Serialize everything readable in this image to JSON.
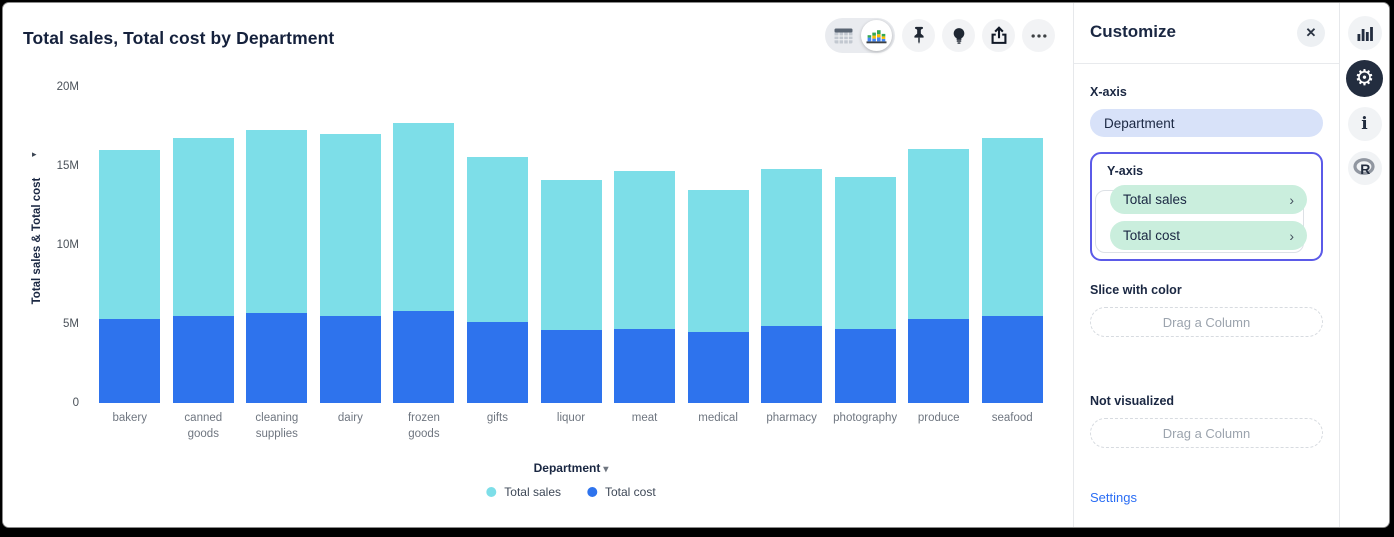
{
  "header": {
    "title": "Total sales, Total cost by Department"
  },
  "toolbar": {
    "view_toggle": {
      "options": [
        "table-view",
        "chart-view"
      ],
      "selected": "chart-view"
    },
    "buttons": [
      "pin",
      "insights-bulb",
      "share",
      "more-options"
    ],
    "more_options_glyph": "•••"
  },
  "customize": {
    "title": "Customize",
    "close_glyph": "✕",
    "x_axis": {
      "label": "X-axis",
      "value": "Department"
    },
    "y_axis": {
      "label": "Y-axis",
      "chevron": "›",
      "values": [
        "Total sales",
        "Total cost"
      ]
    },
    "slice_with_color": {
      "label": "Slice with color",
      "placeholder": "Drag a Column"
    },
    "not_visualized": {
      "label": "Not visualized",
      "placeholder": "Drag a Column"
    },
    "settings_label": "Settings"
  },
  "right_rail": {
    "icons": [
      "chart-icon",
      "settings-gear-icon",
      "info-icon",
      "r-logo-icon"
    ],
    "selected": "settings-gear-icon"
  },
  "chart_data": {
    "type": "bar",
    "stacked": true,
    "title": "Total sales, Total cost by Department",
    "categories": [
      "bakery",
      "canned goods",
      "cleaning supplies",
      "dairy",
      "frozen goods",
      "gifts",
      "liquor",
      "meat",
      "medical",
      "pharmacy",
      "photography",
      "produce",
      "seafood"
    ],
    "x_tick_labels": [
      "bakery",
      "canned\ngoods",
      "cleaning\nsupplies",
      "dairy",
      "frozen\ngoods",
      "gifts",
      "liquor",
      "meat",
      "medical",
      "pharmacy",
      "photography",
      "produce",
      "seafood"
    ],
    "series": [
      {
        "name": "Total sales",
        "color": "#7DDEE8",
        "values_millions": [
          10.7,
          11.3,
          11.6,
          11.5,
          11.9,
          10.5,
          9.5,
          10.0,
          9.0,
          9.9,
          9.6,
          10.8,
          11.3
        ]
      },
      {
        "name": "Total cost",
        "color": "#2E73ED",
        "values_millions": [
          5.3,
          5.5,
          5.7,
          5.5,
          5.8,
          5.1,
          4.6,
          4.7,
          4.5,
          4.9,
          4.7,
          5.3,
          5.5
        ]
      }
    ],
    "stack_order_bottom_to_top": [
      "Total cost",
      "Total sales"
    ],
    "xlabel": "Department",
    "xlabel_arrow": "▾",
    "ylabel": "Total sales & Total cost",
    "ylabel_arrow": "▸",
    "y_ticks": [
      "0",
      "5M",
      "10M",
      "15M",
      "20M"
    ],
    "y_tick_values_millions": [
      0,
      5,
      10,
      15,
      20
    ],
    "ylim_millions": [
      0,
      20
    ],
    "grid": false,
    "legend_position": "bottom"
  }
}
